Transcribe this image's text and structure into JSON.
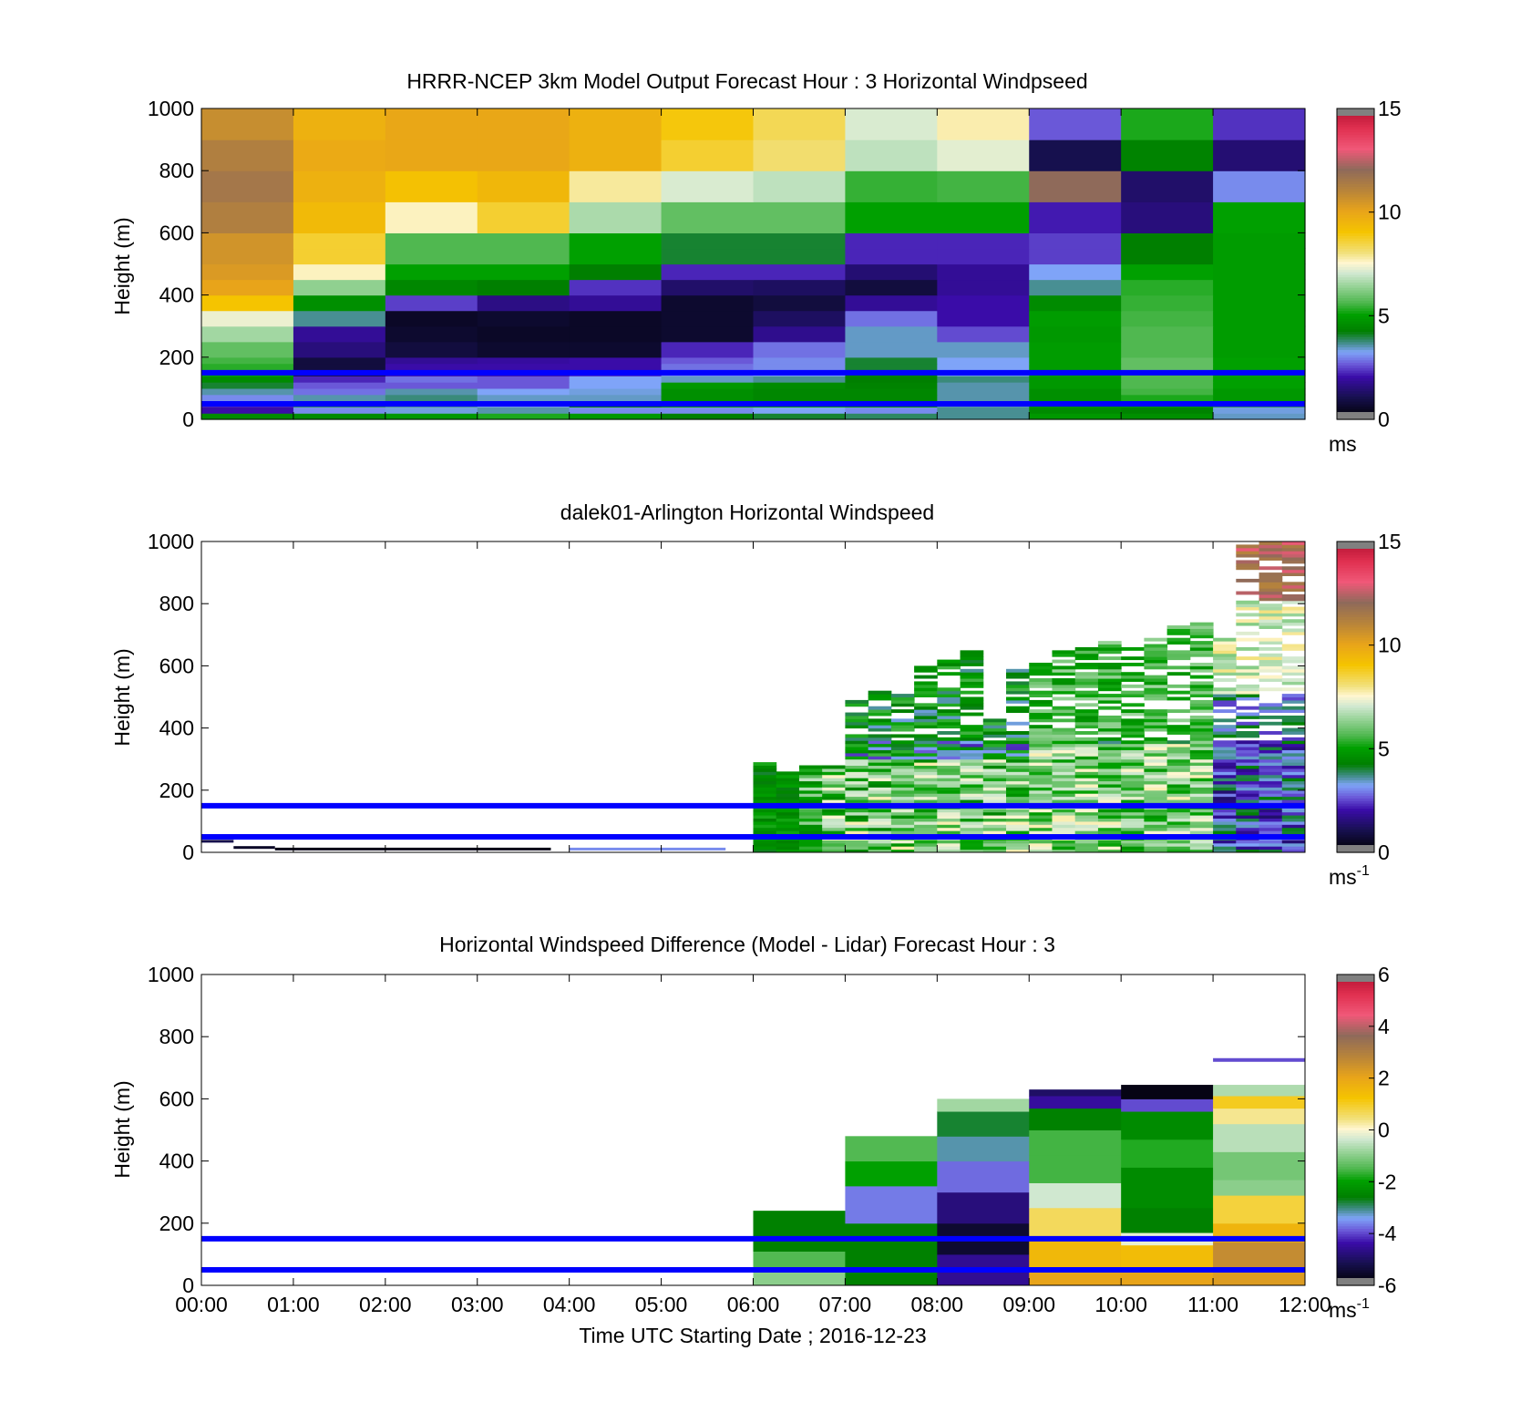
{
  "figure": {
    "xlabel": "Time UTC  Starting Date ; 2016-12-23",
    "x_ticks": [
      "00:00",
      "01:00",
      "02:00",
      "03:00",
      "04:00",
      "05:00",
      "06:00",
      "07:00",
      "08:00",
      "09:00",
      "10:00",
      "11:00",
      "12:00"
    ],
    "y_ticks": [
      "0",
      "200",
      "400",
      "600",
      "800",
      "1000"
    ],
    "ylabel": "Height (m)"
  },
  "chart_data": [
    {
      "type": "heatmap",
      "title": "HRRR-NCEP 3km Model Output   Forecast Hour : 3 Horizontal Windpseed",
      "ylabel": "Height (m)",
      "xlabel": "",
      "ylim": [
        0,
        1000
      ],
      "xlim": [
        "00:00",
        "12:00"
      ],
      "colorbar": {
        "range": [
          0,
          15
        ],
        "ticks": [
          "0",
          "5",
          "10",
          "15"
        ],
        "unit": "ms",
        "unit_sup": ""
      },
      "x_hours": [
        0,
        1,
        2,
        3,
        4,
        5,
        6,
        7,
        8,
        9,
        10,
        11
      ],
      "y_edges": [
        0,
        20,
        40,
        60,
        80,
        100,
        120,
        140,
        160,
        180,
        200,
        250,
        300,
        350,
        400,
        450,
        500,
        550,
        600,
        700,
        800,
        900,
        1000
      ],
      "values": [
        [
          4.5,
          4.5,
          4.8,
          5.2,
          4.8,
          4.2,
          4.0,
          3.8,
          3.6,
          4.8,
          4.6,
          3.4
        ],
        [
          2.0,
          3.0,
          3.3,
          3.5,
          3.0,
          3.0,
          3.2,
          3.0,
          3.6,
          4.5,
          4.3,
          3.3
        ],
        [
          2.2,
          3.8,
          3.6,
          3.3,
          4.2,
          4.8,
          4.8,
          4.6,
          3.5,
          4.6,
          4.7,
          3.8
        ],
        [
          3.0,
          3.5,
          3.7,
          3.4,
          3.4,
          4.6,
          4.4,
          4.4,
          3.5,
          4.6,
          5.2,
          4.8
        ],
        [
          3.5,
          2.8,
          3.5,
          3.2,
          3.3,
          4.6,
          4.4,
          4.4,
          3.5,
          4.6,
          5.5,
          4.8
        ],
        [
          4.0,
          2.6,
          2.6,
          2.6,
          3.2,
          4.8,
          4.5,
          4.3,
          3.5,
          4.8,
          5.6,
          5.0
        ],
        [
          4.5,
          2.2,
          2.8,
          2.6,
          3.2,
          3.4,
          3.6,
          4.2,
          3.7,
          4.8,
          5.6,
          5.0
        ],
        [
          5.0,
          1.0,
          2.0,
          2.0,
          2.2,
          3.0,
          3.2,
          4.2,
          3.3,
          4.9,
          5.6,
          5.0
        ],
        [
          5.3,
          0.8,
          2.0,
          2.0,
          2.0,
          2.8,
          3.0,
          4.0,
          3.2,
          4.9,
          5.8,
          5.0
        ],
        [
          5.5,
          0.8,
          1.8,
          1.9,
          2.0,
          2.6,
          3.0,
          4.0,
          3.2,
          4.9,
          5.8,
          5.0
        ],
        [
          5.8,
          1.5,
          0.8,
          0.6,
          0.6,
          2.2,
          2.8,
          3.4,
          3.4,
          4.9,
          5.6,
          4.9
        ],
        [
          6.5,
          1.8,
          0.6,
          0.5,
          0.5,
          0.6,
          1.7,
          3.4,
          2.5,
          4.8,
          5.6,
          4.9
        ],
        [
          7.3,
          3.6,
          0.5,
          0.6,
          0.5,
          0.6,
          1.2,
          2.8,
          2.0,
          4.9,
          5.5,
          4.9
        ],
        [
          9.0,
          4.6,
          2.4,
          1.6,
          1.8,
          0.6,
          0.8,
          1.8,
          2.0,
          4.5,
          5.4,
          4.9
        ],
        [
          10.0,
          6.3,
          4.4,
          4.2,
          2.3,
          1.3,
          1.2,
          0.8,
          1.8,
          3.6,
          5.3,
          4.9
        ],
        [
          10.3,
          7.6,
          5.0,
          5.0,
          4.2,
          2.2,
          2.2,
          1.4,
          1.8,
          3.2,
          5.0,
          4.9
        ],
        [
          10.5,
          8.6,
          5.6,
          5.6,
          5.0,
          4.0,
          4.0,
          2.2,
          2.2,
          2.4,
          4.2,
          4.9
        ],
        [
          10.5,
          8.6,
          5.6,
          5.6,
          5.0,
          4.0,
          4.0,
          2.2,
          2.2,
          2.4,
          4.2,
          4.9
        ],
        [
          11.2,
          9.3,
          7.6,
          8.6,
          6.6,
          5.8,
          5.8,
          5.0,
          5.0,
          2.1,
          1.5,
          5.0
        ],
        [
          11.5,
          9.6,
          9.1,
          9.4,
          7.8,
          7.1,
          6.8,
          5.4,
          5.5,
          12.0,
          1.3,
          3.0
        ],
        [
          11.2,
          9.8,
          9.9,
          9.9,
          9.6,
          8.6,
          8.1,
          6.8,
          7.2,
          1.0,
          4.3,
          1.4
        ],
        [
          10.7,
          9.6,
          9.9,
          9.9,
          9.6,
          8.9,
          8.3,
          7.1,
          7.7,
          2.6,
          5.2,
          2.3
        ]
      ]
    },
    {
      "type": "heatmap",
      "title": "dalek01-Arlington  Horizontal Windspeed",
      "ylabel": "Height (m)",
      "xlabel": "",
      "ylim": [
        0,
        1000
      ],
      "xlim": [
        "00:00",
        "12:00"
      ],
      "colorbar": {
        "range": [
          0,
          15
        ],
        "ticks": [
          "0",
          "5",
          "10",
          "15"
        ],
        "unit": "ms",
        "unit_sup": "-1"
      },
      "time_steps": [
        6.0,
        6.25,
        6.5,
        6.75,
        7.0,
        7.25,
        7.5,
        7.75,
        8.0,
        8.25,
        8.5,
        8.75,
        9.0,
        9.25,
        9.5,
        9.75,
        10.0,
        10.25,
        10.5,
        10.75,
        11.0,
        11.25,
        11.5,
        11.75
      ],
      "step_width_h": 0.25,
      "column_tops_m": [
        290,
        260,
        280,
        280,
        500,
        520,
        530,
        600,
        620,
        650,
        440,
        590,
        640,
        650,
        660,
        680,
        670,
        700,
        730,
        750,
        690,
        990,
        1000,
        1000
      ],
      "level_spacing_m": 10,
      "low_level_traces": [
        {
          "from_h": 0.0,
          "to_h": 0.35,
          "height_m": 40,
          "value": 1.0
        },
        {
          "from_h": 0.35,
          "to_h": 0.8,
          "height_m": 20,
          "value": 0.5
        },
        {
          "from_h": 0.8,
          "to_h": 3.8,
          "height_m": 15,
          "value": 0.3
        },
        {
          "from_h": 4.0,
          "to_h": 5.7,
          "height_m": 15,
          "value": 3.0
        }
      ]
    },
    {
      "type": "heatmap",
      "title": "Horizontal Windspeed Difference (Model - Lidar) Forecast Hour : 3",
      "ylabel": "Height (m)",
      "xlabel": "Time UTC  Starting Date ; 2016-12-23",
      "ylim": [
        0,
        1000
      ],
      "xlim": [
        "00:00",
        "12:00"
      ],
      "colorbar": {
        "range": [
          -6,
          6
        ],
        "ticks": [
          "-6",
          "-4",
          "-2",
          "0",
          "2",
          "4",
          "6"
        ],
        "unit": "ms",
        "unit_sup": "-1"
      },
      "columns": [
        {
          "from": 6,
          "to": 7,
          "top_m": 240,
          "bands": [
            [
              0,
              60,
              -1.0
            ],
            [
              60,
              110,
              -1.5
            ],
            [
              110,
              240,
              -2.6
            ]
          ]
        },
        {
          "from": 7,
          "to": 8,
          "top_m": 480,
          "bands": [
            [
              0,
              80,
              -2.6
            ],
            [
              80,
              200,
              -2.6
            ],
            [
              200,
              320,
              -3.7
            ],
            [
              320,
              400,
              -2.0
            ],
            [
              400,
              480,
              -1.5
            ]
          ]
        },
        {
          "from": 8,
          "to": 9,
          "top_m": 600,
          "bands": [
            [
              0,
              100,
              -4.6
            ],
            [
              100,
              200,
              -5.5
            ],
            [
              200,
              300,
              -4.8
            ],
            [
              300,
              400,
              -3.8
            ],
            [
              400,
              480,
              -3.2
            ],
            [
              480,
              560,
              -2.8
            ],
            [
              560,
              600,
              -0.8
            ]
          ]
        },
        {
          "from": 9,
          "to": 10,
          "top_m": 630,
          "bands": [
            [
              0,
              60,
              2.0
            ],
            [
              60,
              150,
              1.5
            ],
            [
              150,
              250,
              0.6
            ],
            [
              250,
              330,
              -0.4
            ],
            [
              330,
              420,
              -1.6
            ],
            [
              420,
              500,
              -1.6
            ],
            [
              500,
              570,
              -2.6
            ],
            [
              570,
              610,
              -4.5
            ],
            [
              610,
              630,
              -5.0
            ]
          ]
        },
        {
          "from": 10,
          "to": 11,
          "top_m": 645,
          "bands": [
            [
              0,
              60,
              2.0
            ],
            [
              60,
              130,
              1.4
            ],
            [
              130,
              170,
              -0.2
            ],
            [
              170,
              250,
              -2.6
            ],
            [
              250,
              380,
              -2.4
            ],
            [
              380,
              470,
              -1.8
            ],
            [
              470,
              560,
              -2.4
            ],
            [
              560,
              600,
              -4.0
            ],
            [
              600,
              645,
              -5.8
            ]
          ]
        },
        {
          "from": 11,
          "to": 12,
          "top_m": 645,
          "bands": [
            [
              0,
              60,
              2.2
            ],
            [
              60,
              140,
              2.6
            ],
            [
              140,
              200,
              1.6
            ],
            [
              200,
              290,
              0.8
            ],
            [
              290,
              340,
              -1.0
            ],
            [
              340,
              430,
              -1.2
            ],
            [
              430,
              520,
              -0.6
            ],
            [
              520,
              570,
              0.3
            ],
            [
              570,
              610,
              1.0
            ],
            [
              610,
              645,
              -0.7
            ]
          ],
          "extra_line": {
            "height_m": 725,
            "value": -4.0
          }
        }
      ]
    }
  ],
  "reference_lines": {
    "heights_m": [
      50,
      150
    ],
    "color": "#0000ff"
  },
  "colors": {
    "speed_stops": [
      {
        "v": 0.0,
        "c": "#000000"
      },
      {
        "v": 1.0,
        "c": "#16104e"
      },
      {
        "v": 2.0,
        "c": "#3a0ca8"
      },
      {
        "v": 2.6,
        "c": "#6a58d8"
      },
      {
        "v": 3.2,
        "c": "#7fa4f8"
      },
      {
        "v": 3.7,
        "c": "#3a8a7a"
      },
      {
        "v": 4.2,
        "c": "#007f00"
      },
      {
        "v": 5.0,
        "c": "#00a000"
      },
      {
        "v": 5.6,
        "c": "#50b850"
      },
      {
        "v": 6.3,
        "c": "#90d090"
      },
      {
        "v": 7.0,
        "c": "#d0e8d0"
      },
      {
        "v": 7.5,
        "c": "#fff6d0"
      },
      {
        "v": 8.0,
        "c": "#f2e07a"
      },
      {
        "v": 9.0,
        "c": "#f5c400"
      },
      {
        "v": 10.0,
        "c": "#e8a41a"
      },
      {
        "v": 11.0,
        "c": "#b8843a"
      },
      {
        "v": 12.0,
        "c": "#8f6a5a"
      },
      {
        "v": 13.0,
        "c": "#f05878"
      },
      {
        "v": 14.0,
        "c": "#e03050"
      },
      {
        "v": 15.0,
        "c": "#b01030"
      }
    ],
    "gray_end": "#808080",
    "box_line": "#000000"
  }
}
